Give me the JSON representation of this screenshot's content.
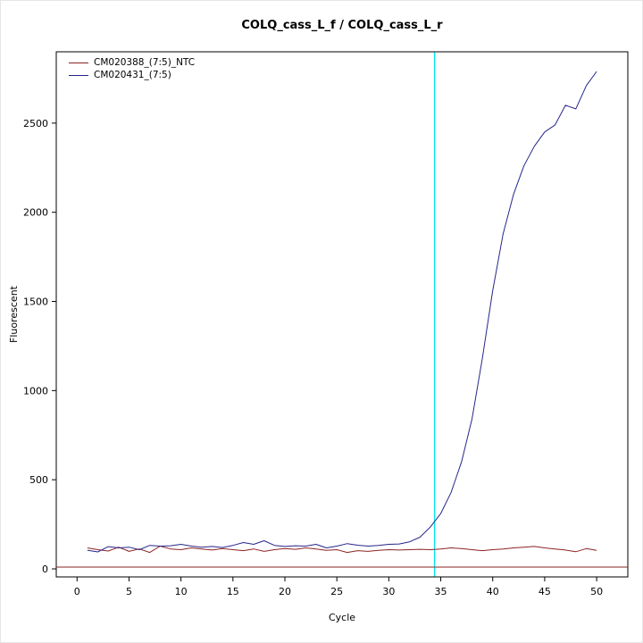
{
  "chart_data": {
    "type": "line",
    "title": "COLQ_cass_L_f / COLQ_cass_L_r",
    "xlabel": "Cycle",
    "ylabel": "Fluorescent",
    "x": [
      1,
      2,
      3,
      4,
      5,
      6,
      7,
      8,
      9,
      10,
      11,
      12,
      13,
      14,
      15,
      16,
      17,
      18,
      19,
      20,
      21,
      22,
      23,
      24,
      25,
      26,
      27,
      28,
      29,
      30,
      31,
      32,
      33,
      34,
      35,
      36,
      37,
      38,
      39,
      40,
      41,
      42,
      43,
      44,
      45,
      46,
      47,
      48,
      49,
      50
    ],
    "series": [
      {
        "name": "CM020388_(7:5)_NTC",
        "color": "#8B2323",
        "values": [
          118,
          108,
          100,
          122,
          98,
          112,
          92,
          128,
          112,
          108,
          118,
          112,
          106,
          114,
          108,
          102,
          112,
          98,
          108,
          114,
          110,
          118,
          112,
          104,
          108,
          92,
          102,
          98,
          104,
          108,
          106,
          108,
          110,
          108,
          112,
          118,
          114,
          108,
          102,
          108,
          112,
          118,
          122,
          126,
          118,
          112,
          106,
          96,
          114,
          104
        ]
      },
      {
        "name": "CM020431_(7:5)",
        "color": "#26268B",
        "values": [
          105,
          95,
          125,
          118,
          122,
          108,
          132,
          128,
          130,
          138,
          128,
          122,
          126,
          120,
          132,
          148,
          138,
          158,
          132,
          126,
          130,
          128,
          138,
          118,
          128,
          142,
          133,
          128,
          132,
          138,
          140,
          152,
          178,
          235,
          310,
          430,
          600,
          840,
          1180,
          1560,
          1880,
          2100,
          2260,
          2370,
          2450,
          2490,
          2600,
          2580,
          2710,
          2790
        ]
      }
    ],
    "threshold_line": {
      "y": 10,
      "color": "#8B2323"
    },
    "threshold_cycle_line": {
      "x": 34.4,
      "color": "#00E5EE"
    },
    "axes": {
      "xlim": [
        -2,
        53
      ],
      "ylim": [
        -45,
        2900
      ],
      "xticks": [
        0,
        5,
        10,
        15,
        20,
        25,
        30,
        35,
        40,
        45,
        50
      ],
      "yticks": [
        0,
        500,
        1000,
        1500,
        2000,
        2500
      ],
      "grid": false,
      "legend_position": "top-left"
    }
  }
}
